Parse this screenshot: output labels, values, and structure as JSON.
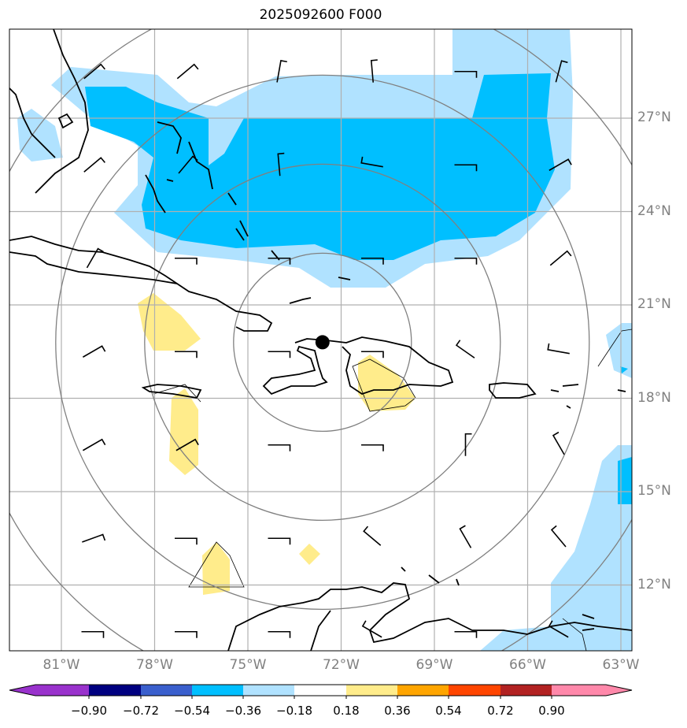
{
  "title": "2025092600 F000",
  "lat_labels": [
    "27°N",
    "24°N",
    "21°N",
    "18°N",
    "15°N",
    "12°N"
  ],
  "lon_labels": [
    "81°W",
    "78°W",
    "75°W",
    "72°W",
    "69°W",
    "66°W",
    "63°W"
  ],
  "colorbar": {
    "ticks": [
      "−0.90",
      "−0.72",
      "−0.54",
      "−0.36",
      "−0.18",
      "0.18",
      "0.36",
      "0.54",
      "0.72",
      "0.90"
    ],
    "colors": [
      "#9932CC",
      "#000080",
      "#3A5FCD",
      "#00BFFF",
      "#B0E2FF",
      "#FFFFFF",
      "#FFEC8B",
      "#FFA500",
      "#FF4500",
      "#B22222",
      "#FF88AA"
    ]
  },
  "center_marker": {
    "lon": -72.6,
    "lat": 19.8
  },
  "chart_data": {
    "type": "map",
    "title": "2025092600 F000",
    "lon_range": [
      -82.6,
      -62.6
    ],
    "lat_range": [
      9.9,
      29.9
    ],
    "levels": [
      -0.9,
      -0.72,
      -0.54,
      -0.36,
      -0.18,
      0.18,
      0.36,
      0.54,
      0.72,
      0.9
    ],
    "range_rings": 4,
    "wind_barbs": [
      [
        -80.0,
        28.5,
        40
      ],
      [
        -77.0,
        28.5,
        40
      ],
      [
        -74.0,
        28.5,
        80
      ],
      [
        -71.0,
        28.5,
        95
      ],
      [
        -68.0,
        28.5,
        0
      ],
      [
        -65.0,
        28.5,
        75
      ],
      [
        -80.0,
        25.5,
        40
      ],
      [
        -77.0,
        25.5,
        50
      ],
      [
        -74.0,
        25.5,
        95
      ],
      [
        -71.0,
        25.5,
        170
      ],
      [
        -68.0,
        25.5,
        0
      ],
      [
        -65.0,
        25.5,
        30
      ],
      [
        -80.0,
        22.5,
        60
      ],
      [
        -77.0,
        22.5,
        0
      ],
      [
        -74.0,
        22.5,
        0
      ],
      [
        -71.0,
        22.5,
        0
      ],
      [
        -68.0,
        22.5,
        0
      ],
      [
        -65.0,
        22.5,
        40
      ],
      [
        -80.0,
        19.5,
        30
      ],
      [
        -77.0,
        19.5,
        0
      ],
      [
        -74.0,
        19.5,
        0
      ],
      [
        -71.0,
        19.5,
        0
      ],
      [
        -68.0,
        19.5,
        145
      ],
      [
        -65.0,
        19.5,
        170
      ],
      [
        -80.0,
        16.5,
        30
      ],
      [
        -77.0,
        16.5,
        30
      ],
      [
        -74.0,
        16.5,
        0
      ],
      [
        -71.0,
        16.5,
        0
      ],
      [
        -68.0,
        16.5,
        90
      ],
      [
        -65.0,
        16.5,
        120
      ],
      [
        -80.0,
        13.5,
        20
      ],
      [
        -77.0,
        13.5,
        0
      ],
      [
        -74.0,
        13.5,
        0
      ],
      [
        -71.0,
        13.5,
        140
      ],
      [
        -68.0,
        13.5,
        120
      ],
      [
        -65.0,
        13.5,
        130
      ],
      [
        -80.0,
        10.5,
        0
      ],
      [
        -77.0,
        10.5,
        0
      ],
      [
        -74.0,
        10.5,
        0
      ],
      [
        -71.0,
        10.5,
        150
      ],
      [
        -68.0,
        10.5,
        0
      ],
      [
        -65.0,
        10.5,
        150
      ]
    ]
  }
}
